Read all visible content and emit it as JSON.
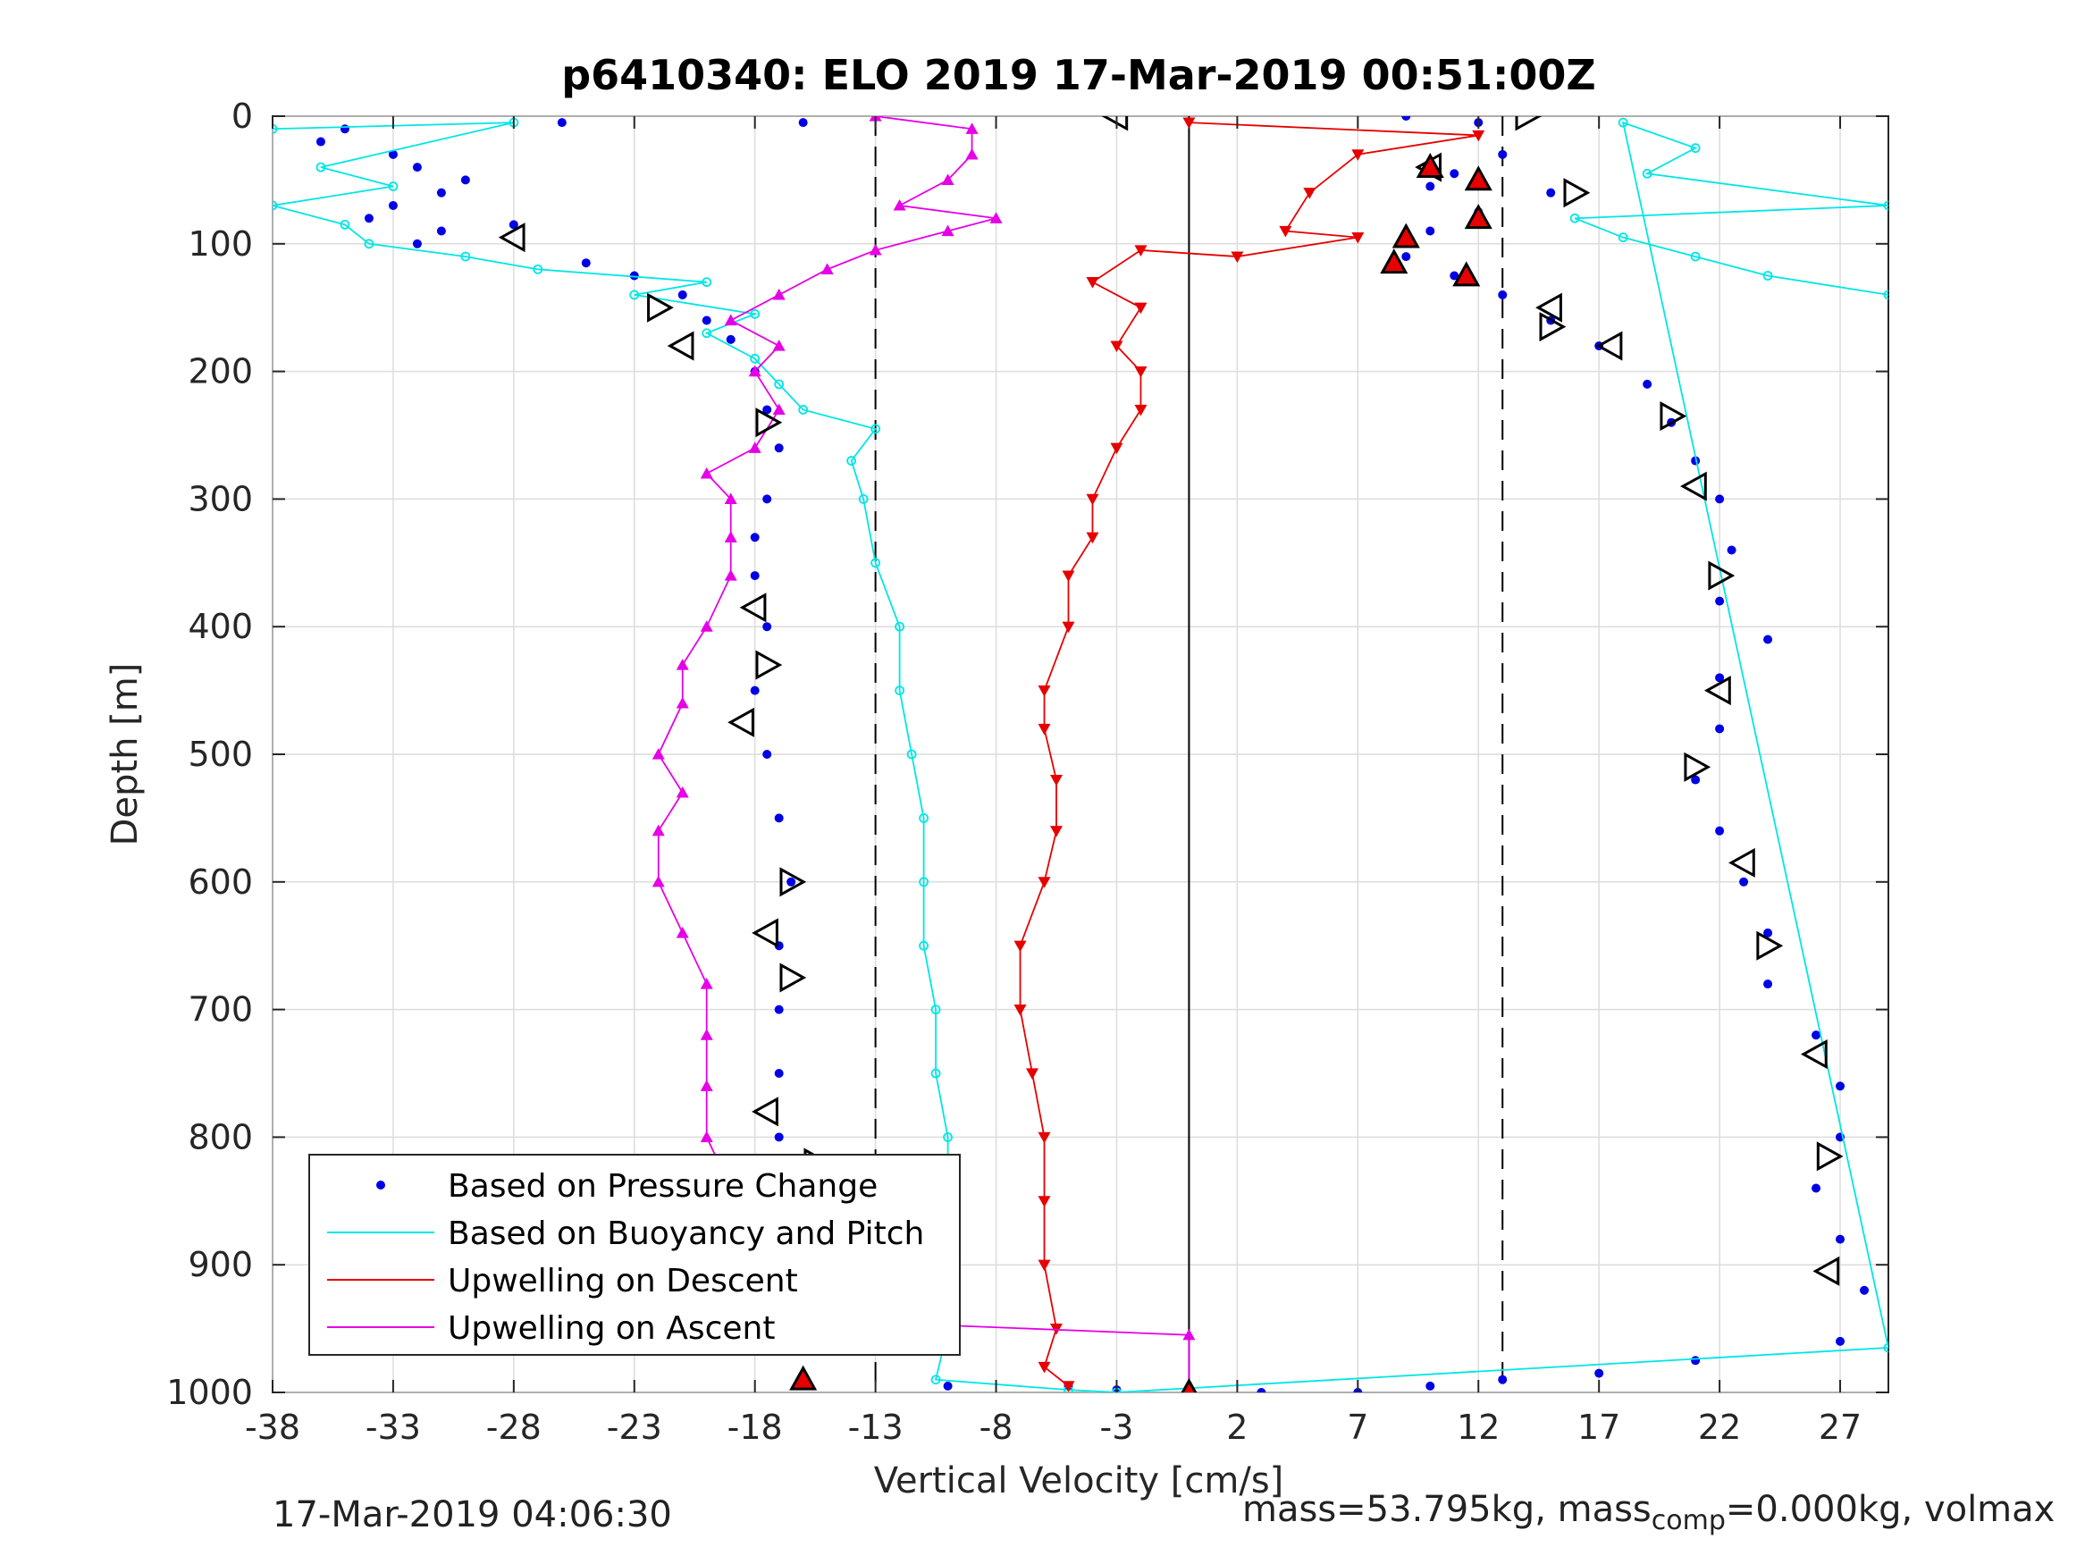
{
  "chart_data": {
    "type": "scatter",
    "title": "p6410340: ELO 2019 17-Mar-2019 00:51:00Z",
    "xlabel": "Vertical Velocity [cm/s]",
    "ylabel": "Depth [m]",
    "xlim": [
      -38,
      29
    ],
    "ylim": [
      0,
      1000
    ],
    "y_reversed": true,
    "xticks": [
      -38,
      -33,
      -28,
      -23,
      -18,
      -13,
      -8,
      -3,
      2,
      7,
      12,
      17,
      22,
      27
    ],
    "yticks": [
      0,
      100,
      200,
      300,
      400,
      500,
      600,
      700,
      800,
      900,
      1000
    ],
    "grid": true,
    "legend_position": "bottom-left",
    "vertical_lines": [
      {
        "x": 0,
        "style": "solid"
      },
      {
        "x": -13,
        "style": "dashed"
      },
      {
        "x": 13,
        "style": "dashed"
      }
    ],
    "colors": {
      "pressure": "#0000e6",
      "buoyancy": "#00e6e6",
      "descent": "#e60000",
      "ascent": "#e600e6"
    },
    "series": [
      {
        "name": "Based on Pressure Change",
        "marker": "dot",
        "color": "#0000e6",
        "points": [
          [
            -35,
            10
          ],
          [
            -36,
            20
          ],
          [
            -33,
            30
          ],
          [
            -32,
            40
          ],
          [
            -30,
            50
          ],
          [
            -31,
            60
          ],
          [
            -33,
            70
          ],
          [
            -34,
            80
          ],
          [
            -31,
            90
          ],
          [
            -32,
            100
          ],
          [
            -28,
            85
          ],
          [
            -25,
            115
          ],
          [
            -23,
            125
          ],
          [
            -21,
            140
          ],
          [
            -20,
            160
          ],
          [
            -19,
            175
          ],
          [
            -18,
            200
          ],
          [
            -17.5,
            230
          ],
          [
            -17,
            260
          ],
          [
            -17.5,
            300
          ],
          [
            -18,
            330
          ],
          [
            -18,
            360
          ],
          [
            -17.5,
            400
          ],
          [
            -18,
            450
          ],
          [
            -17.5,
            500
          ],
          [
            -17,
            550
          ],
          [
            -16.5,
            600
          ],
          [
            -17,
            650
          ],
          [
            -17,
            700
          ],
          [
            -17,
            750
          ],
          [
            -17,
            800
          ],
          [
            -16,
            850
          ],
          [
            -16.5,
            900
          ],
          [
            -15.5,
            950
          ],
          [
            -16,
            990
          ],
          [
            -10,
            995
          ],
          [
            -5,
            995
          ],
          [
            -3,
            998
          ],
          [
            0,
            1000
          ],
          [
            3,
            1000
          ],
          [
            7,
            1000
          ],
          [
            10,
            995
          ],
          [
            13,
            990
          ],
          [
            17,
            985
          ],
          [
            21,
            975
          ],
          [
            -16,
            5
          ],
          [
            -26,
            5
          ],
          [
            9,
            0
          ],
          [
            12,
            5
          ],
          [
            13,
            30
          ],
          [
            11,
            45
          ],
          [
            10,
            55
          ],
          [
            15,
            60
          ],
          [
            12,
            75
          ],
          [
            10,
            90
          ],
          [
            9,
            110
          ],
          [
            11,
            125
          ],
          [
            13,
            140
          ],
          [
            15,
            160
          ],
          [
            17,
            180
          ],
          [
            19,
            210
          ],
          [
            20,
            240
          ],
          [
            21,
            270
          ],
          [
            22,
            300
          ],
          [
            22.5,
            340
          ],
          [
            22,
            380
          ],
          [
            24,
            410
          ],
          [
            22,
            440
          ],
          [
            22,
            480
          ],
          [
            21,
            520
          ],
          [
            22,
            560
          ],
          [
            23,
            600
          ],
          [
            24,
            640
          ],
          [
            24,
            680
          ],
          [
            26,
            720
          ],
          [
            27,
            760
          ],
          [
            27,
            800
          ],
          [
            26,
            840
          ],
          [
            27,
            880
          ],
          [
            28,
            920
          ],
          [
            27,
            960
          ]
        ]
      },
      {
        "name": "Based on Buoyancy and Pitch",
        "marker": "line-circle",
        "color": "#00e6e6",
        "points": [
          [
            -38,
            10
          ],
          [
            -28,
            5
          ],
          [
            -36,
            40
          ],
          [
            -33,
            55
          ],
          [
            -38,
            70
          ],
          [
            -35,
            85
          ],
          [
            -34,
            100
          ],
          [
            -30,
            110
          ],
          [
            -27,
            120
          ],
          [
            -20,
            130
          ],
          [
            -23,
            140
          ],
          [
            -18,
            155
          ],
          [
            -20,
            170
          ],
          [
            -18,
            190
          ],
          [
            -17,
            210
          ],
          [
            -16,
            230
          ],
          [
            -13,
            245
          ],
          [
            -14,
            270
          ],
          [
            -13.5,
            300
          ],
          [
            -13,
            350
          ],
          [
            -12,
            400
          ],
          [
            -12,
            450
          ],
          [
            -11.5,
            500
          ],
          [
            -11,
            550
          ],
          [
            -11,
            600
          ],
          [
            -11,
            650
          ],
          [
            -10.5,
            700
          ],
          [
            -10.5,
            750
          ],
          [
            -10,
            800
          ],
          [
            -10,
            850
          ],
          [
            -10,
            900
          ],
          [
            -10,
            950
          ],
          [
            -10.5,
            990
          ],
          [
            -5,
            998
          ],
          [
            -3,
            1000
          ],
          [
            29,
            965
          ],
          [
            18,
            5
          ],
          [
            21,
            25
          ],
          [
            19,
            45
          ],
          [
            29,
            70
          ],
          [
            16,
            80
          ],
          [
            18,
            95
          ],
          [
            21,
            110
          ],
          [
            24,
            125
          ],
          [
            29,
            140
          ]
        ]
      },
      {
        "name": "Upwelling on Descent",
        "marker": "triangle-down",
        "color": "#e60000",
        "points": [
          [
            0,
            5
          ],
          [
            12,
            15
          ],
          [
            7,
            30
          ],
          [
            5,
            60
          ],
          [
            4,
            90
          ],
          [
            7,
            95
          ],
          [
            2,
            110
          ],
          [
            -2,
            105
          ],
          [
            -4,
            130
          ],
          [
            -2,
            150
          ],
          [
            -3,
            180
          ],
          [
            -2,
            200
          ],
          [
            -2,
            230
          ],
          [
            -3,
            260
          ],
          [
            -4,
            300
          ],
          [
            -4,
            330
          ],
          [
            -5,
            360
          ],
          [
            -5,
            400
          ],
          [
            -6,
            450
          ],
          [
            -6,
            480
          ],
          [
            -5.5,
            520
          ],
          [
            -5.5,
            560
          ],
          [
            -6,
            600
          ],
          [
            -7,
            650
          ],
          [
            -7,
            700
          ],
          [
            -6.5,
            750
          ],
          [
            -6,
            800
          ],
          [
            -6,
            850
          ],
          [
            -6,
            900
          ],
          [
            -5.5,
            950
          ],
          [
            -6,
            980
          ],
          [
            -5,
            995
          ]
        ]
      },
      {
        "name": "Upwelling on Ascent",
        "marker": "triangle-up",
        "color": "#e600e6",
        "points": [
          [
            -13,
            0
          ],
          [
            -9,
            10
          ],
          [
            -9,
            30
          ],
          [
            -10,
            50
          ],
          [
            -12,
            70
          ],
          [
            -8,
            80
          ],
          [
            -10,
            90
          ],
          [
            -13,
            105
          ],
          [
            -15,
            120
          ],
          [
            -17,
            140
          ],
          [
            -19,
            160
          ],
          [
            -17,
            180
          ],
          [
            -18,
            200
          ],
          [
            -17,
            230
          ],
          [
            -18,
            260
          ],
          [
            -20,
            280
          ],
          [
            -19,
            300
          ],
          [
            -19,
            330
          ],
          [
            -19,
            360
          ],
          [
            -20,
            400
          ],
          [
            -21,
            430
          ],
          [
            -21,
            460
          ],
          [
            -22,
            500
          ],
          [
            -21,
            530
          ],
          [
            -22,
            560
          ],
          [
            -22,
            600
          ],
          [
            -21,
            640
          ],
          [
            -20,
            680
          ],
          [
            -20,
            720
          ],
          [
            -20,
            760
          ],
          [
            -20,
            800
          ],
          [
            -19,
            840
          ],
          [
            -18,
            880
          ],
          [
            -19,
            920
          ],
          [
            -20,
            940
          ],
          [
            0,
            955
          ],
          [
            0,
            1000
          ]
        ]
      },
      {
        "name": "",
        "marker": "triangle-outline",
        "color": "#000000",
        "points": [
          [
            -3,
            0
          ],
          [
            14,
            0
          ],
          [
            10,
            40
          ],
          [
            16,
            60
          ],
          [
            -28,
            95
          ],
          [
            -22,
            150
          ],
          [
            -21,
            180
          ],
          [
            -17.5,
            240
          ],
          [
            -18,
            385
          ],
          [
            -17.5,
            430
          ],
          [
            -18.5,
            475
          ],
          [
            -16.5,
            600
          ],
          [
            -17.5,
            640
          ],
          [
            -16.5,
            675
          ],
          [
            -17.5,
            780
          ],
          [
            -15.5,
            820
          ],
          [
            -16,
            910
          ],
          [
            -15,
            945
          ],
          [
            15,
            150
          ],
          [
            15,
            165
          ],
          [
            17.5,
            180
          ],
          [
            20,
            235
          ],
          [
            21,
            290
          ],
          [
            22,
            360
          ],
          [
            22,
            450
          ],
          [
            21,
            510
          ],
          [
            23,
            585
          ],
          [
            24,
            650
          ],
          [
            26,
            735
          ],
          [
            26.5,
            815
          ],
          [
            26.5,
            905
          ]
        ]
      },
      {
        "name": "",
        "marker": "triangle-filled",
        "color": "#e60000",
        "points": [
          [
            10,
            40
          ],
          [
            12,
            50
          ],
          [
            12,
            80
          ],
          [
            9,
            95
          ],
          [
            8.5,
            115
          ],
          [
            11.5,
            125
          ],
          [
            -16,
            990
          ],
          [
            0,
            1000
          ]
        ]
      }
    ],
    "legend": [
      {
        "label": "Based on Pressure Change",
        "color": "#0000e6",
        "style": "dot"
      },
      {
        "label": "Based on Buoyancy and Pitch",
        "color": "#00e6e6",
        "style": "line"
      },
      {
        "label": "Upwelling on Descent",
        "color": "#e60000",
        "style": "line"
      },
      {
        "label": "Upwelling on Ascent",
        "color": "#e600e6",
        "style": "line"
      }
    ]
  },
  "footer": {
    "timestamp": "17-Mar-2019 04:06:30",
    "mass_text_a": "mass=53.795kg, mass",
    "mass_sub": "comp",
    "mass_text_b": "=0.000kg, volmax"
  }
}
